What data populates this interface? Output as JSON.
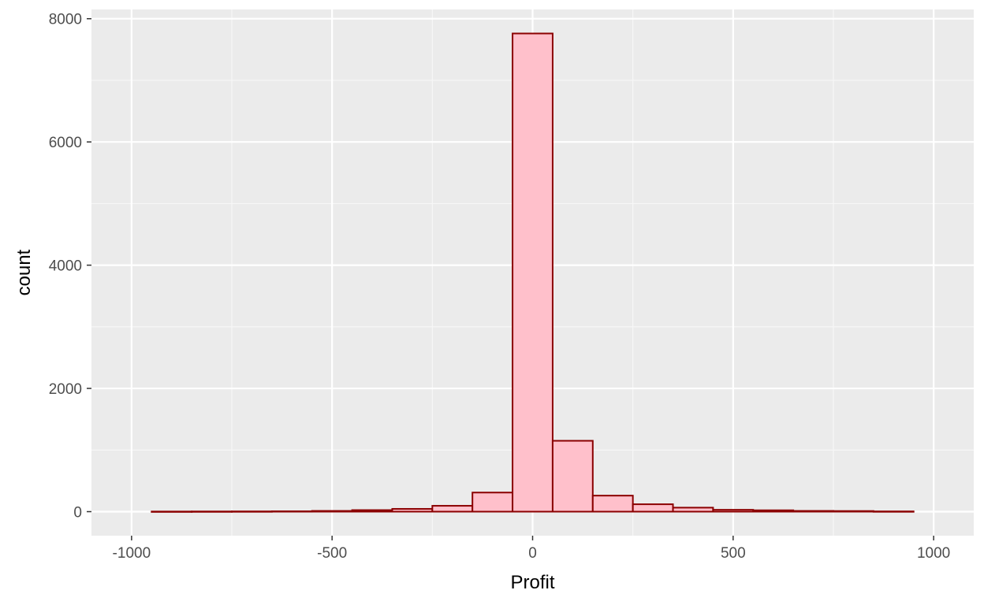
{
  "chart_data": {
    "type": "bar",
    "subtype": "histogram",
    "title": "",
    "xlabel": "Profit",
    "ylabel": "count",
    "bin_width": 100,
    "bins": [
      {
        "x0": -950,
        "x1": -850,
        "count": 2
      },
      {
        "x0": -850,
        "x1": -750,
        "count": 3
      },
      {
        "x0": -750,
        "x1": -650,
        "count": 4
      },
      {
        "x0": -650,
        "x1": -550,
        "count": 6
      },
      {
        "x0": -550,
        "x1": -450,
        "count": 12
      },
      {
        "x0": -450,
        "x1": -350,
        "count": 25
      },
      {
        "x0": -350,
        "x1": -250,
        "count": 45
      },
      {
        "x0": -250,
        "x1": -150,
        "count": 95
      },
      {
        "x0": -150,
        "x1": -50,
        "count": 310
      },
      {
        "x0": -50,
        "x1": 50,
        "count": 7760
      },
      {
        "x0": 50,
        "x1": 150,
        "count": 1150
      },
      {
        "x0": 150,
        "x1": 250,
        "count": 260
      },
      {
        "x0": 250,
        "x1": 350,
        "count": 120
      },
      {
        "x0": 350,
        "x1": 450,
        "count": 65
      },
      {
        "x0": 450,
        "x1": 550,
        "count": 30
      },
      {
        "x0": 550,
        "x1": 650,
        "count": 22
      },
      {
        "x0": 650,
        "x1": 750,
        "count": 12
      },
      {
        "x0": 750,
        "x1": 850,
        "count": 10
      },
      {
        "x0": 850,
        "x1": 950,
        "count": 4
      }
    ],
    "xlim": [
      -1100,
      1100
    ],
    "ylim": [
      -390,
      8150
    ],
    "x_ticks": [
      -1000,
      -500,
      0,
      500,
      1000
    ],
    "x_tick_labels": [
      "-1000",
      "-500",
      "0",
      "500",
      "1000"
    ],
    "x_minor_ticks": [
      -750,
      -250,
      250,
      750
    ],
    "y_ticks": [
      0,
      2000,
      4000,
      6000,
      8000
    ],
    "y_tick_labels": [
      "0",
      "2000",
      "4000",
      "6000",
      "8000"
    ],
    "y_minor_ticks": [
      1000,
      3000,
      5000,
      7000
    ],
    "grid": true,
    "legend": "none",
    "colors": {
      "panel_background": "#ebebeb",
      "grid_major": "#ffffff",
      "grid_minor": "#f7f7f7",
      "bar_fill": "#ffc0cb",
      "bar_outline": "#8b0000",
      "tick_mark": "#333333",
      "tick_label": "#4d4d4d",
      "axis_title": "#000000"
    }
  }
}
